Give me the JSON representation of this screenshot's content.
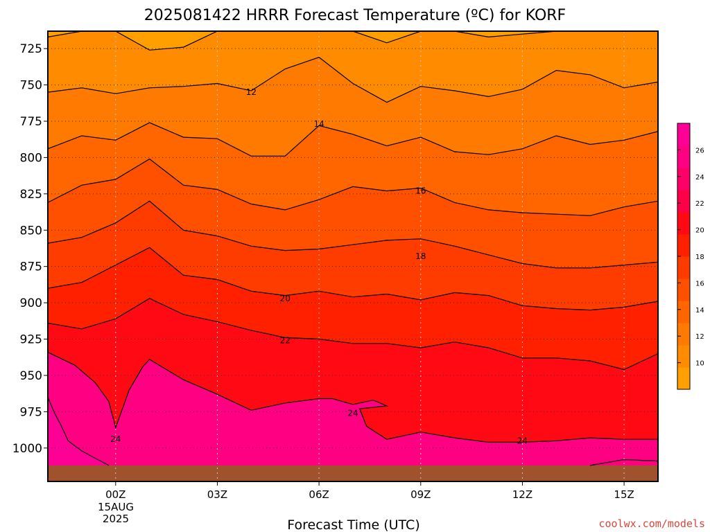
{
  "title": "2025081422 HRRR Forecast Temperature (ºC) for KORF",
  "xlabel": "Forecast Time (UTC)",
  "credit": "coolwx.com/models",
  "x_date": [
    "15AUG",
    "2025"
  ],
  "colors": {
    "frame": "#000000",
    "grid": "#c8c8c8",
    "ground": "#a0522d",
    "credit": "#d9463b"
  },
  "chart_data": {
    "type": "heatmap",
    "title": "2025081422 HRRR Forecast Temperature (ºC) for KORF",
    "xlabel": "Forecast Time (UTC)",
    "ylabel": "",
    "x_ticks": [
      "00Z",
      "03Z",
      "06Z",
      "09Z",
      "12Z",
      "15Z"
    ],
    "x_tick_hours": [
      0,
      3,
      6,
      9,
      12,
      15
    ],
    "x_range_hours": [
      -2,
      16
    ],
    "y_ticks": [
      725,
      750,
      775,
      800,
      825,
      850,
      875,
      900,
      925,
      950,
      975,
      1000
    ],
    "y_range_hpa": [
      713,
      1023
    ],
    "y_axis_inverted": true,
    "grid": true,
    "surface_pressure_hpa": 1012,
    "colorbar": {
      "ticks": [
        10,
        12,
        14,
        16,
        18,
        20,
        22,
        24,
        26
      ],
      "range": [
        8,
        28
      ],
      "colors": [
        "#ff9f00",
        "#ff8c00",
        "#ff7a00",
        "#ff6600",
        "#ff5000",
        "#ff3c00",
        "#ff2000",
        "#ff0a14",
        "#ff0048",
        "#ff0068",
        "#ff0082",
        "#ff0096"
      ]
    },
    "contour_labels": [
      {
        "value": "12",
        "x_hour": 4.0,
        "p_hpa": 755
      },
      {
        "value": "14",
        "x_hour": 6.0,
        "p_hpa": 777
      },
      {
        "value": "16",
        "x_hour": 9.0,
        "p_hpa": 823
      },
      {
        "value": "18",
        "x_hour": 9.0,
        "p_hpa": 868
      },
      {
        "value": "20",
        "x_hour": 5.0,
        "p_hpa": 897
      },
      {
        "value": "22",
        "x_hour": 5.0,
        "p_hpa": 926
      },
      {
        "value": "24",
        "x_hour": 7.0,
        "p_hpa": 976
      },
      {
        "value": "24",
        "x_hour": 0.0,
        "p_hpa": 994
      },
      {
        "value": "24",
        "x_hour": 12.0,
        "p_hpa": 995
      }
    ],
    "isotherms": [
      {
        "value": 10,
        "x_hours": [
          -2,
          -1,
          0,
          1,
          2,
          3,
          4,
          5,
          6,
          7,
          8,
          9,
          10,
          11,
          12,
          13,
          14,
          15,
          16
        ],
        "p_hpa": [
          717,
          713,
          713,
          726,
          724,
          713,
          713,
          713,
          713,
          713,
          721,
          713,
          713,
          717,
          715,
          713,
          713,
          713,
          713
        ]
      },
      {
        "value": 12,
        "x_hours": [
          -2,
          -1,
          0,
          1,
          2,
          3,
          4,
          5,
          6,
          7,
          8,
          9,
          10,
          11,
          12,
          13,
          14,
          15,
          16
        ],
        "p_hpa": [
          755,
          752,
          756,
          752,
          751,
          749,
          754,
          739,
          731,
          749,
          762,
          751,
          754,
          758,
          753,
          740,
          743,
          752,
          748
        ]
      },
      {
        "value": 14,
        "x_hours": [
          -2,
          -1,
          0,
          1,
          2,
          3,
          4,
          5,
          6,
          7,
          8,
          9,
          10,
          11,
          12,
          13,
          14,
          15,
          16
        ],
        "p_hpa": [
          794,
          785,
          788,
          776,
          786,
          787,
          799,
          799,
          778,
          784,
          792,
          786,
          796,
          798,
          794,
          785,
          791,
          788,
          782
        ]
      },
      {
        "value": 16,
        "x_hours": [
          -2,
          -1,
          0,
          1,
          2,
          3,
          4,
          5,
          6,
          7,
          8,
          9,
          10,
          11,
          12,
          13,
          14,
          15,
          16
        ],
        "p_hpa": [
          831,
          819,
          815,
          801,
          819,
          822,
          832,
          836,
          829,
          820,
          823,
          821,
          831,
          836,
          838,
          839,
          840,
          834,
          830
        ]
      },
      {
        "value": 18,
        "x_hours": [
          -2,
          -1,
          0,
          1,
          2,
          3,
          4,
          5,
          6,
          7,
          8,
          9,
          10,
          11,
          12,
          13,
          14,
          15,
          16
        ],
        "p_hpa": [
          859,
          855,
          845,
          830,
          850,
          854,
          861,
          864,
          863,
          860,
          857,
          856,
          861,
          867,
          873,
          876,
          876,
          874,
          872
        ]
      },
      {
        "value": 20,
        "x_hours": [
          -2,
          -1,
          0,
          1,
          2,
          3,
          4,
          5,
          6,
          7,
          8,
          9,
          10,
          11,
          12,
          13,
          14,
          15,
          16
        ],
        "p_hpa": [
          890,
          886,
          874,
          862,
          881,
          884,
          892,
          895,
          892,
          896,
          894,
          898,
          893,
          895,
          902,
          904,
          905,
          903,
          899
        ]
      },
      {
        "value": 22,
        "x_hours": [
          -2,
          -1,
          0,
          1,
          2,
          3,
          4,
          5,
          6,
          7,
          8,
          9,
          10,
          11,
          12,
          13,
          14,
          15,
          16
        ],
        "p_hpa": [
          914,
          918,
          911,
          897,
          908,
          913,
          919,
          924,
          925,
          928,
          928,
          931,
          927,
          931,
          938,
          938,
          940,
          946,
          935
        ]
      },
      {
        "value": 24,
        "x_hours": [
          -2,
          -1.2,
          -0.6,
          -0.2,
          0.0,
          0.4,
          0.8,
          1.0,
          2.0,
          3.0,
          4.0,
          5.0,
          6.0,
          6.4,
          7.0,
          7.6,
          8.0,
          7.2,
          7.4,
          8.0,
          9.0,
          10.0,
          11.0,
          12.0,
          13.0,
          14.0,
          15.0,
          16.0
        ],
        "p_hpa": [
          934,
          943,
          955,
          968,
          986,
          960,
          944,
          939,
          953,
          963,
          974,
          969,
          966,
          966,
          970,
          967,
          971,
          973,
          985,
          994,
          989,
          993,
          996,
          996,
          995,
          993,
          994,
          994
        ]
      },
      {
        "value": 24,
        "x_hours": [
          -2.0,
          -1.8,
          -1.6,
          -1.4,
          -1.0,
          -0.6,
          -0.2
        ],
        "p_hpa": [
          965,
          976,
          985,
          995,
          1002,
          1007,
          1012
        ]
      },
      {
        "value": 26,
        "x_hours": [
          14,
          15,
          16
        ],
        "p_hpa": [
          1012,
          1008,
          1009
        ]
      }
    ]
  }
}
